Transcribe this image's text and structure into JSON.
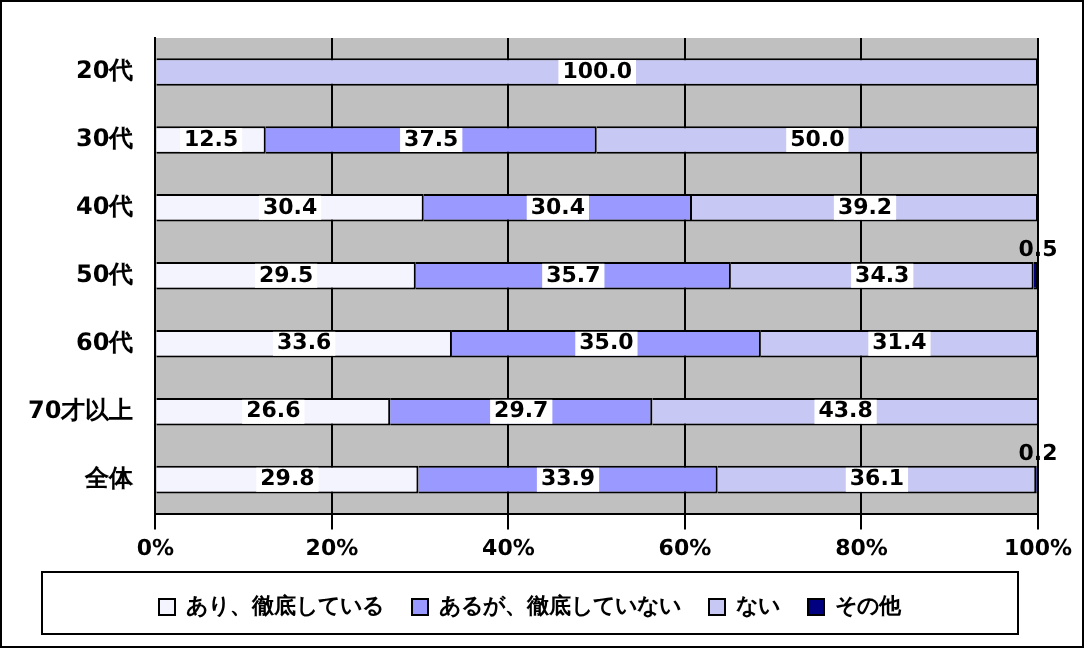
{
  "chart_data": {
    "type": "bar",
    "orientation": "horizontal",
    "stacked": true,
    "categories": [
      "20代",
      "30代",
      "40代",
      "50代",
      "60代",
      "70才以上",
      "全体"
    ],
    "series": [
      {
        "name": "あり、徹底している",
        "color": "#f4f4ff",
        "values": [
          0,
          12.5,
          30.4,
          29.5,
          33.6,
          26.6,
          29.8
        ],
        "value_labels": [
          null,
          "12.5",
          "30.4",
          "29.5",
          "33.6",
          "26.6",
          "29.8"
        ]
      },
      {
        "name": "あるが、徹底していない",
        "color": "#9999ff",
        "values": [
          0,
          37.5,
          30.4,
          35.7,
          35.0,
          29.7,
          33.9
        ],
        "value_labels": [
          null,
          "37.5",
          "30.4",
          "35.7",
          "35.0",
          "29.7",
          "33.9"
        ]
      },
      {
        "name": "ない",
        "color": "#c8c8f4",
        "values": [
          100.0,
          50.0,
          39.2,
          34.3,
          31.4,
          43.8,
          36.1
        ],
        "value_labels": [
          "100.0",
          "50.0",
          "39.2",
          "34.3",
          "31.4",
          "43.8",
          "36.1"
        ]
      },
      {
        "name": "その他",
        "color": "#000080",
        "values": [
          0,
          0,
          0,
          0.5,
          0,
          0,
          0.2
        ],
        "value_labels": [
          null,
          null,
          null,
          "0.5",
          null,
          null,
          "0.2"
        ]
      }
    ],
    "xlim": [
      0,
      100
    ],
    "xticks": [
      {
        "value": 0,
        "label": "0%"
      },
      {
        "value": 20,
        "label": "20%"
      },
      {
        "value": 40,
        "label": "40%"
      },
      {
        "value": 60,
        "label": "60%"
      },
      {
        "value": 80,
        "label": "80%"
      },
      {
        "value": 100,
        "label": "100%"
      }
    ],
    "grid": "x",
    "legend": "bottom"
  }
}
